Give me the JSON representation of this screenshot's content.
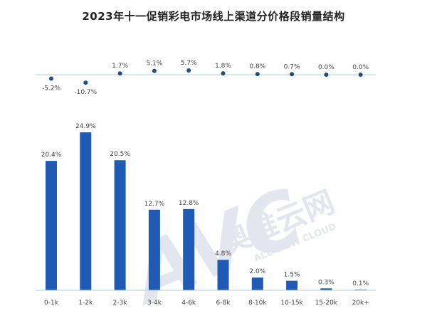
{
  "title": "2023年十一促销彩电市场线上渠道分价格段销量结构",
  "watermark": {
    "logo": "AVC",
    "brand": "奥维云网",
    "sub": "ALL VIEW CLOUD"
  },
  "colors": {
    "bar": "#1f5bb5",
    "dot": "#1f4f7a",
    "baseline": "#b8c8d8"
  },
  "chart_data": [
    {
      "type": "scatter",
      "categories": [
        "0-1k",
        "1-2k",
        "2-3k",
        "3-4k",
        "4-6k",
        "6-8k",
        "8-10k",
        "10-15k",
        "15-20k",
        "20k+"
      ],
      "values": [
        -5.2,
        -10.7,
        1.7,
        5.1,
        5.7,
        1.8,
        0.8,
        0.7,
        0.0,
        0.0
      ],
      "labels": [
        "-5.2%",
        "-10.7%",
        "1.7%",
        "5.1%",
        "5.7%",
        "1.8%",
        "0.8%",
        "0.7%",
        "0.0%",
        "0.0%"
      ]
    },
    {
      "type": "bar",
      "categories": [
        "0-1k",
        "1-2k",
        "2-3k",
        "3-4k",
        "4-6k",
        "6-8k",
        "8-10k",
        "10-15k",
        "15-20k",
        "20k+"
      ],
      "values": [
        20.4,
        24.9,
        20.5,
        12.7,
        12.8,
        4.8,
        2.0,
        1.5,
        0.3,
        0.1
      ],
      "labels": [
        "20.4%",
        "24.9%",
        "20.5%",
        "12.7%",
        "12.8%",
        "4.8%",
        "2.0%",
        "1.5%",
        "0.3%",
        "0.1%"
      ],
      "ylim": [
        0,
        25
      ]
    }
  ]
}
